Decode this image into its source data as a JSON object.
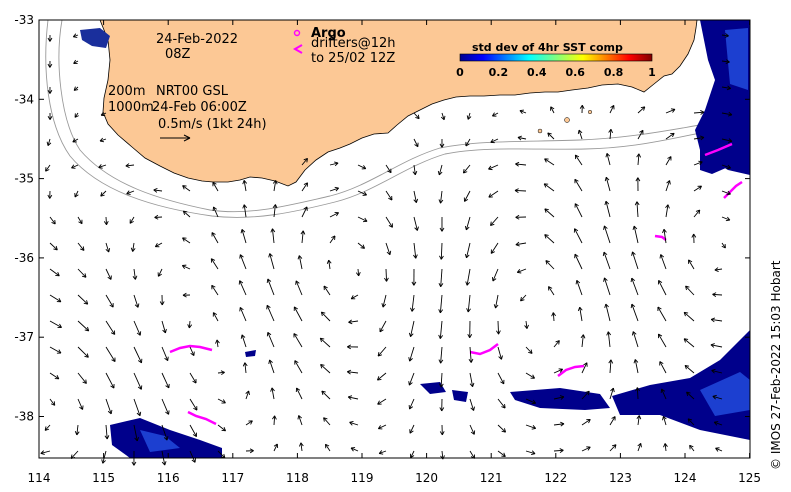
{
  "map": {
    "date": "24-Feb-2022",
    "time": "08Z",
    "isobath_200": "200m",
    "isobath_1000": "1000m",
    "product": "NRT00 GSL",
    "product_time": "24-Feb 06:00Z",
    "scale_label": "0.5m/s (1kt 24h)",
    "argo_label": "Argo",
    "drifters_label": "drifters@12h",
    "drifters_to": "to 25/02 12Z",
    "colorbar_title": "std dev of 4hr SST comp",
    "colorbar_ticks": [
      "0",
      "0.2",
      "0.4",
      "0.6",
      "0.8",
      "1"
    ],
    "credit": "© IMOS 27-Feb-2022 15:03 Hobart",
    "lon_ticks": [
      "114",
      "115",
      "116",
      "117",
      "118",
      "119",
      "120",
      "121",
      "122",
      "123",
      "124",
      "125"
    ],
    "lat_ticks": [
      "-33",
      "-34",
      "-35",
      "-36",
      "-37",
      "-38"
    ],
    "colors": {
      "land": "#fcc895",
      "sst_dark": "#00008b",
      "sst_mid": "#1c3fd0",
      "drifter": "#ff00ff",
      "arrow": "#000000"
    },
    "icons": [
      "argo-marker-icon",
      "drifter-marker-icon"
    ]
  }
}
